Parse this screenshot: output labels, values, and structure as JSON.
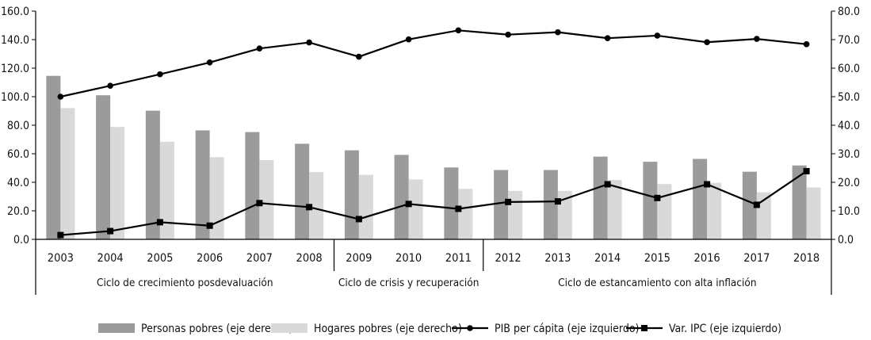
{
  "chart_data": {
    "type": "bar+line",
    "categories": [
      "2003",
      "2004",
      "2005",
      "2006",
      "2007",
      "2008",
      "2009",
      "2010",
      "2011",
      "2012",
      "2013",
      "2014",
      "2015",
      "2016",
      "2017",
      "2018"
    ],
    "left_axis": {
      "min": 0,
      "max": 160,
      "step": 20,
      "tick_labels": [
        "0.0",
        "20.0",
        "40.0",
        "60.0",
        "80.0",
        "100.0",
        "120.0",
        "140.0",
        "160.0"
      ]
    },
    "right_axis": {
      "min": 0,
      "max": 80,
      "step": 10,
      "tick_labels": [
        "0.0",
        "10.0",
        "20.0",
        "30.0",
        "40.0",
        "50.0",
        "60.0",
        "70.0",
        "80.0"
      ]
    },
    "series": [
      {
        "name": "Personas pobres (eje derecho)",
        "kind": "bar",
        "axis": "right",
        "color": "#9b9b9b",
        "values": [
          57.3,
          50.5,
          45.1,
          38.2,
          37.6,
          33.5,
          31.2,
          29.6,
          25.2,
          24.3,
          24.3,
          29.0,
          27.2,
          28.2,
          23.7,
          25.9
        ]
      },
      {
        "name": "Hogares pobres (eje derecho)",
        "kind": "bar",
        "axis": "right",
        "color": "#d9d9d9",
        "values": [
          46.0,
          39.4,
          34.2,
          28.8,
          27.8,
          23.6,
          22.6,
          21.0,
          17.7,
          17.0,
          17.0,
          20.8,
          19.4,
          19.8,
          16.5,
          18.2
        ]
      },
      {
        "name": "PIB per cápita (eje izquierdo)",
        "kind": "line",
        "axis": "left",
        "marker": "circle",
        "color": "#000000",
        "values": [
          100.0,
          107.7,
          115.7,
          124.0,
          133.8,
          138.0,
          128.0,
          140.2,
          146.5,
          143.5,
          145.2,
          141.0,
          142.8,
          138.2,
          140.5,
          136.8
        ]
      },
      {
        "name": "Var. IPC (eje izquierdo)",
        "kind": "line",
        "axis": "left",
        "marker": "square",
        "color": "#000000",
        "values": [
          3.0,
          5.8,
          12.0,
          9.6,
          25.4,
          22.6,
          14.2,
          24.8,
          21.4,
          26.2,
          26.6,
          38.6,
          29.0,
          38.6,
          24.2,
          47.8
        ]
      }
    ],
    "periods": [
      {
        "label": "Ciclo de crecimiento posdevaluación",
        "from": "2003",
        "to": "2008"
      },
      {
        "label": "Ciclo de crisis y recuperación",
        "from": "2009",
        "to": "2011"
      },
      {
        "label": "Ciclo de estancamiento con alta inflación",
        "from": "2012",
        "to": "2018"
      }
    ],
    "legend_position": "bottom",
    "grid": false
  }
}
